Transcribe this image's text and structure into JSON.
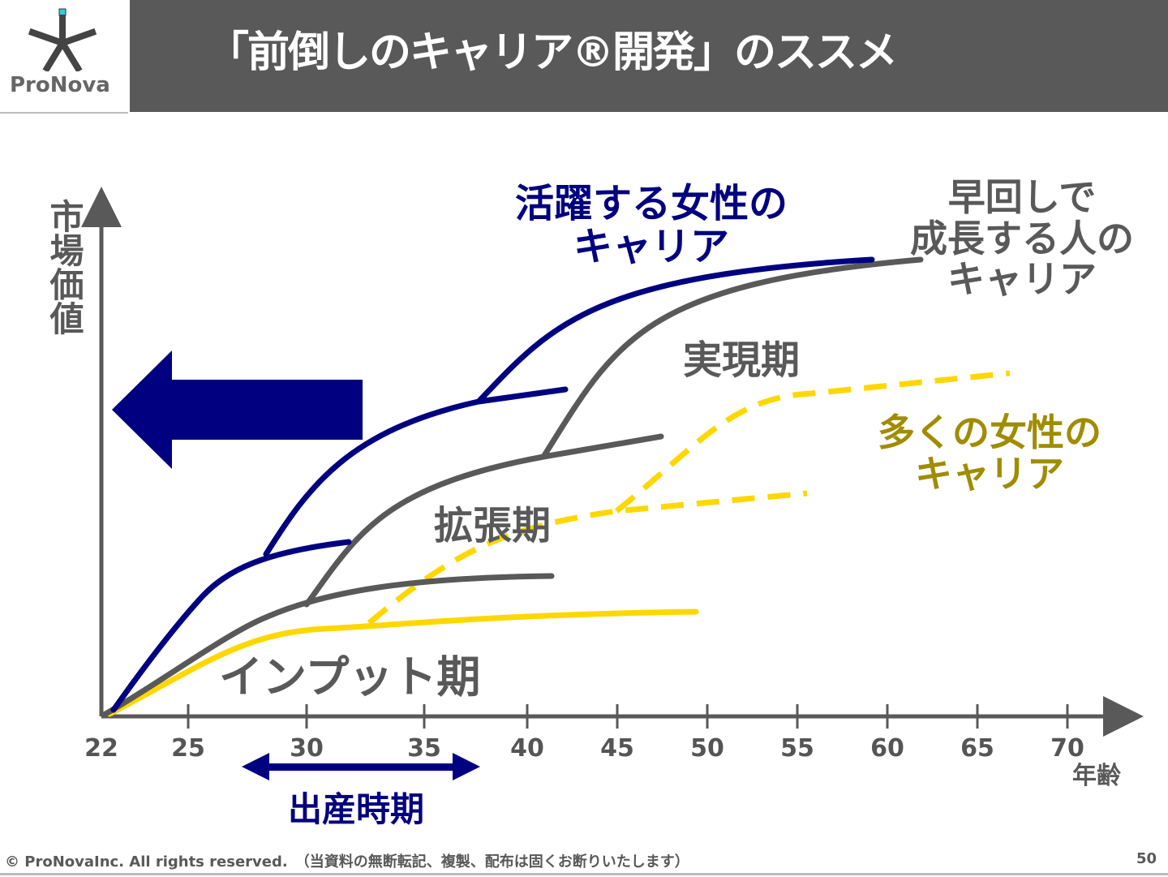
{
  "logo": {
    "text": "ProNova"
  },
  "header": {
    "title": "「前倒しのキャリア®開発」のススメ"
  },
  "chart": {
    "y_axis_label": "市場価値",
    "x_axis_label": "年齢",
    "x_ticks": [
      "22",
      "25",
      "30",
      "35",
      "40",
      "45",
      "50",
      "55",
      "60",
      "65",
      "70"
    ],
    "labels": {
      "active_women": [
        "活躍する女性の",
        "キャリア"
      ],
      "early_growth": [
        "早回しで",
        "成長する人の",
        "キャリア"
      ],
      "many_women": [
        "多くの女性の",
        "キャリア"
      ],
      "realization": "実現期",
      "expansion": "拡張期",
      "input": "インプット期",
      "childbirth": "出産時期"
    },
    "colors": {
      "blue": "#000080",
      "gray": "#595959",
      "yellow": "#FFD700",
      "olive": "#A08C00"
    }
  },
  "footer": {
    "copyright": "© ProNovaInc. All rights reserved.　（当資料の無断転記、複製、配布は固くお断りいたします）",
    "page_number": "50"
  }
}
